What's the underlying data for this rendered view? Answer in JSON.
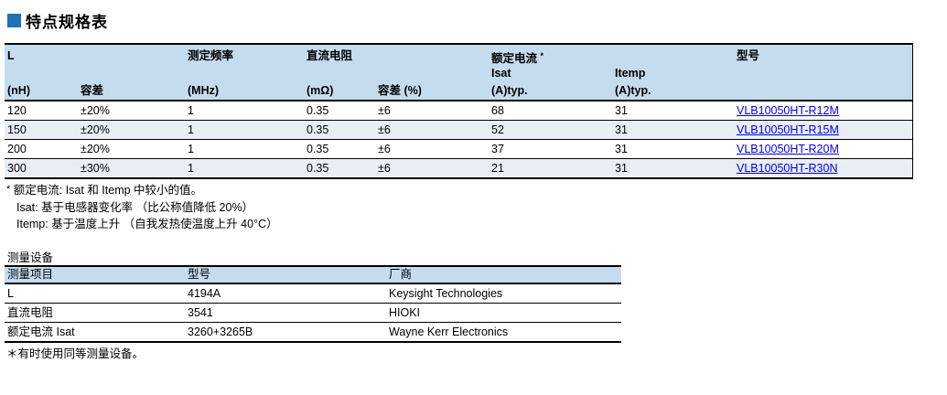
{
  "page": {
    "title": "特点规格表",
    "colors": {
      "accent_square": "#1F72B8",
      "table_header_bg": "#C5DCEF",
      "row_stripe_bg": "#E9EEF5",
      "link": "#0000EE",
      "text": "#000000"
    }
  },
  "spec_table": {
    "headers": {
      "col_l": "L",
      "col_l_unit": "(nH)",
      "col_tol": "容差",
      "col_freq": "测定频率",
      "col_freq_unit": "(MHz)",
      "col_dcr": "直流电阻",
      "col_dcr_unit": "(mΩ)",
      "col_dcr_tol": "容差 (%)",
      "col_rated": "额定电流",
      "rated_mark": "*",
      "col_isat": "Isat",
      "col_isat_unit": "(A)typ.",
      "col_itemp": "Itemp",
      "col_itemp_unit": "(A)typ.",
      "col_part": "型号"
    },
    "rows": [
      {
        "l": "120",
        "tol": "±20%",
        "freq": "1",
        "dcr": "0.35",
        "dcr_tol": "±6",
        "isat": "68",
        "itemp": "31",
        "part": "VLB10050HT-R12M"
      },
      {
        "l": "150",
        "tol": "±20%",
        "freq": "1",
        "dcr": "0.35",
        "dcr_tol": "±6",
        "isat": "52",
        "itemp": "31",
        "part": "VLB10050HT-R15M"
      },
      {
        "l": "200",
        "tol": "±20%",
        "freq": "1",
        "dcr": "0.35",
        "dcr_tol": "±6",
        "isat": "37",
        "itemp": "31",
        "part": "VLB10050HT-R20M"
      },
      {
        "l": "300",
        "tol": "±30%",
        "freq": "1",
        "dcr": "0.35",
        "dcr_tol": "±6",
        "isat": "21",
        "itemp": "31",
        "part": "VLB10050HT-R30N"
      }
    ]
  },
  "footnotes": {
    "mark": "*",
    "line1": "额定电流: Isat 和 Itemp 中较小的值。",
    "line2": "Isat: 基于电感器变化率 （比公称值降低 20%）",
    "line3": "Itemp: 基于温度上升 （自我发热使温度上升 40°C）"
  },
  "equipment": {
    "title": "测量设备",
    "headers": {
      "item": "测量项目",
      "model": "型号",
      "maker": "厂商"
    },
    "rows": [
      {
        "item": "L",
        "model": "4194A",
        "maker": "Keysight Technologies"
      },
      {
        "item": "直流电阻",
        "model": "3541",
        "maker": "HIOKI"
      },
      {
        "item": "额定电流 Isat",
        "model": "3260+3265B",
        "maker": "Wayne Kerr Electronics"
      }
    ],
    "note": "＊有时使用同等测量设备。"
  }
}
